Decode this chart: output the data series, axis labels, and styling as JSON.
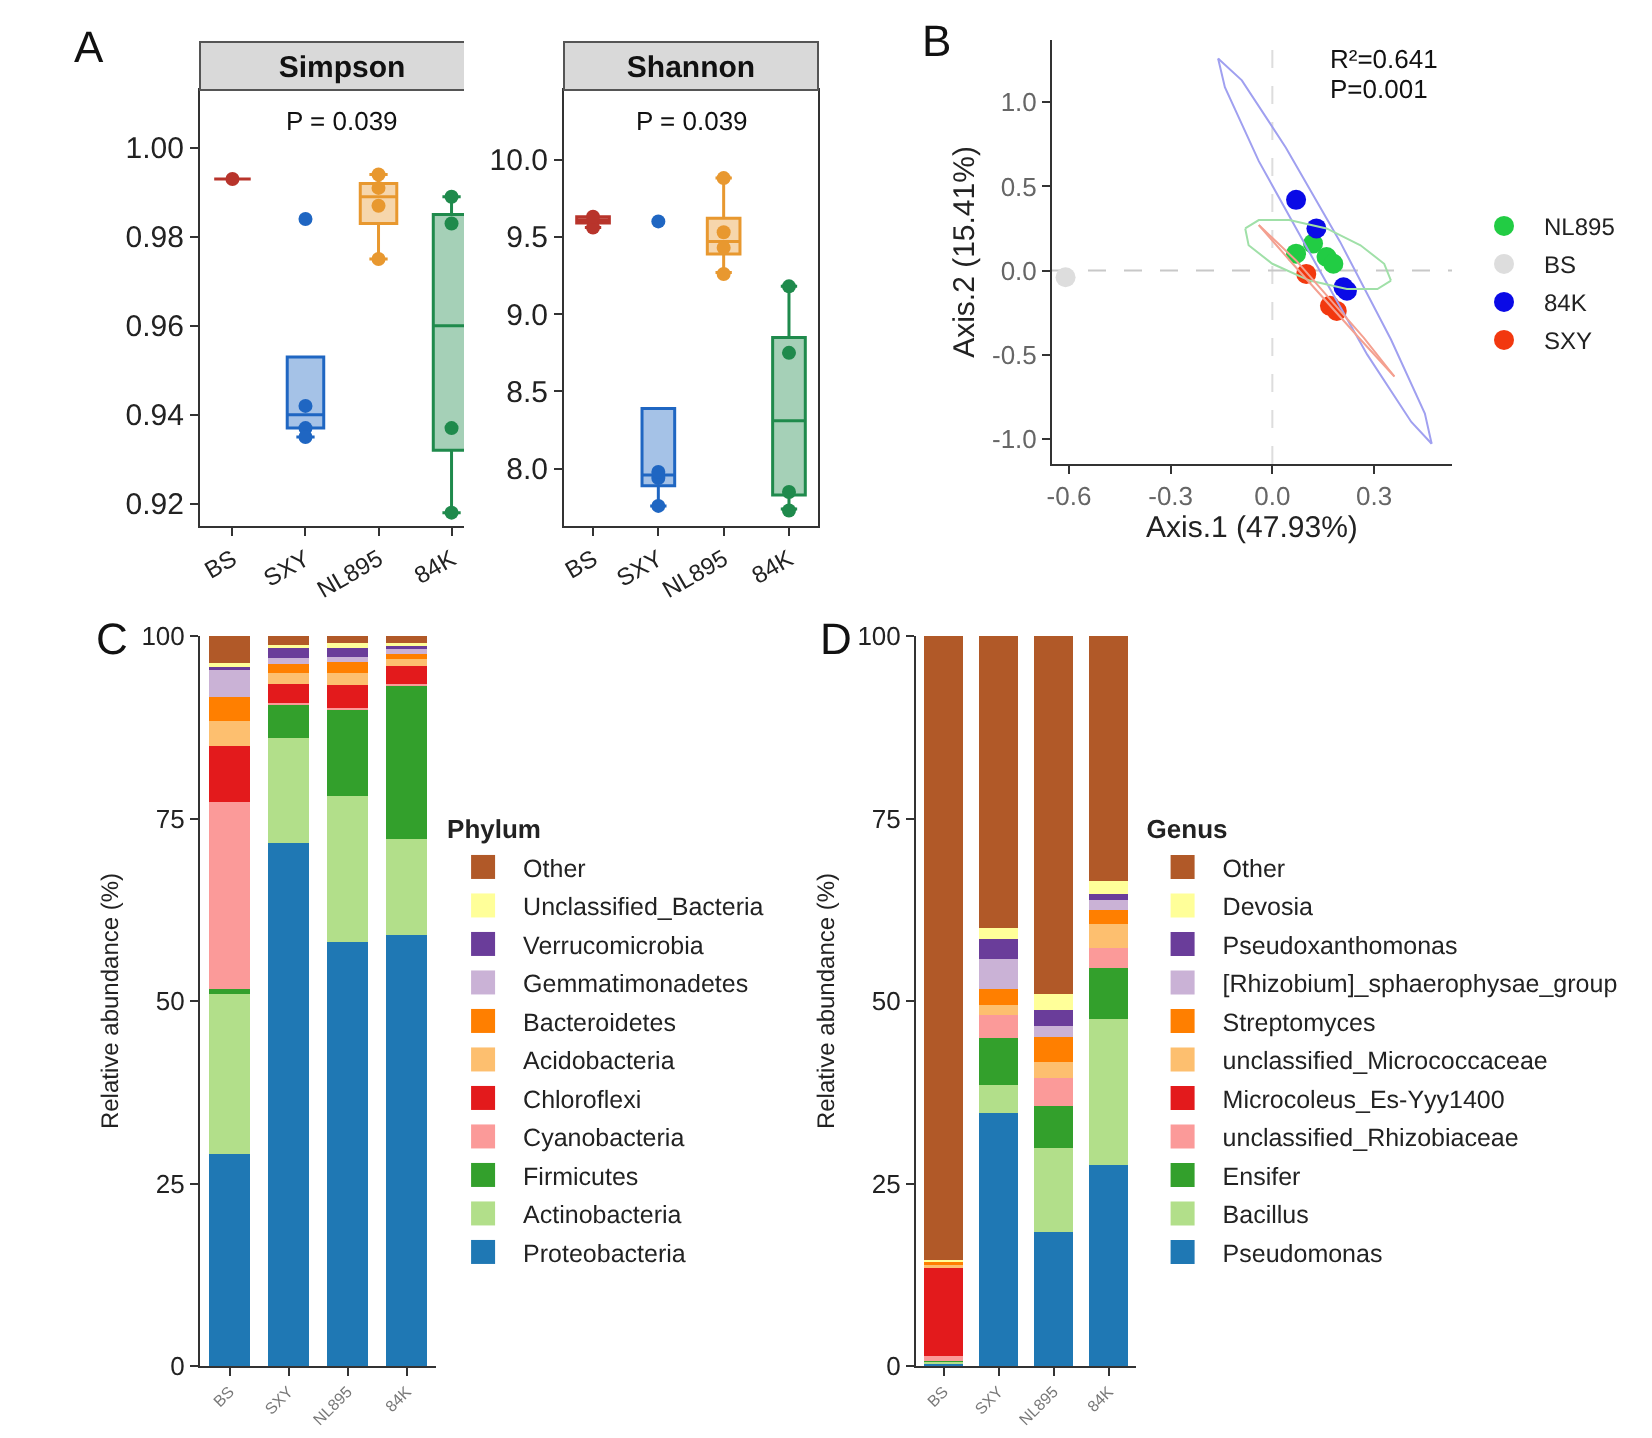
{
  "chart_data": [
    {
      "type": "box",
      "title": "Simpson",
      "categories": [
        "BS",
        "SXY",
        "NL895",
        "84K"
      ],
      "colors": [
        "#b8342b",
        "#1f66c2",
        "#e8982f",
        "#1f8a4c"
      ],
      "boxes": [
        {
          "low": 0.993,
          "q1": 0.993,
          "median": 0.993,
          "q3": 0.993,
          "high": 0.993
        },
        {
          "low": 0.935,
          "q1": 0.937,
          "median": 0.94,
          "q3": 0.953,
          "high": 0.953
        },
        {
          "low": 0.975,
          "q1": 0.983,
          "median": 0.989,
          "q3": 0.992,
          "high": 0.994
        },
        {
          "low": 0.918,
          "q1": 0.932,
          "median": 0.96,
          "q3": 0.985,
          "high": 0.989
        }
      ],
      "series": [
        {
          "type": "scatter",
          "x": [
            "BS",
            "SXY",
            "SXY",
            "SXY",
            "SXY",
            "NL895",
            "NL895",
            "NL895",
            "NL895",
            "84K",
            "84K",
            "84K",
            "84K"
          ],
          "values": [
            0.993,
            0.942,
            0.937,
            0.935,
            0.984,
            0.991,
            0.987,
            0.975,
            0.994,
            0.989,
            0.983,
            0.937,
            0.918
          ],
          "colors": [
            "#b8342b",
            "#1f66c2",
            "#1f66c2",
            "#1f66c2",
            "#1f66c2",
            "#e8982f",
            "#e8982f",
            "#e8982f",
            "#e8982f",
            "#1f8a4c",
            "#1f8a4c",
            "#1f8a4c",
            "#1f8a4c"
          ]
        }
      ],
      "ylim": [
        0.915,
        1.013
      ],
      "yticks": [
        0.92,
        0.94,
        0.96,
        0.98,
        {
          "value": 1,
          "label": "1.00"
        }
      ],
      "annotations": [
        "A",
        "P = 0.039"
      ],
      "legend": false,
      "grid": false
    },
    {
      "type": "box",
      "title": "Shannon",
      "categories": [
        "BS",
        "SXY",
        "NL895",
        "84K"
      ],
      "colors": [
        "#b8342b",
        "#1f66c2",
        "#e8982f",
        "#1f8a4c"
      ],
      "boxes": [
        {
          "low": 9.56,
          "q1": 9.59,
          "median": 9.61,
          "q3": 9.63,
          "high": 9.63
        },
        {
          "low": 7.76,
          "q1": 7.89,
          "median": 7.96,
          "q3": 8.39,
          "high": 8.39
        },
        {
          "low": 9.27,
          "q1": 9.39,
          "median": 9.47,
          "q3": 9.62,
          "high": 9.88
        },
        {
          "low": 7.74,
          "q1": 7.83,
          "median": 8.31,
          "q3": 8.85,
          "high": 9.18
        }
      ],
      "series": [
        {
          "type": "scatter",
          "x": [
            "BS",
            "BS",
            "SXY",
            "SXY",
            "SXY",
            "SXY",
            "NL895",
            "NL895",
            "NL895",
            "NL895",
            "84K",
            "84K",
            "84K",
            "84K"
          ],
          "values": [
            9.56,
            9.63,
            9.6,
            7.94,
            7.76,
            7.98,
            9.88,
            9.53,
            9.43,
            9.26,
            9.18,
            8.75,
            7.85,
            7.73
          ],
          "colors": [
            "#b8342b",
            "#b8342b",
            "#1f66c2",
            "#1f66c2",
            "#1f66c2",
            "#1f66c2",
            "#e8982f",
            "#e8982f",
            "#e8982f",
            "#e8982f",
            "#1f8a4c",
            "#1f8a4c",
            "#1f8a4c",
            "#1f8a4c"
          ]
        }
      ],
      "ylim": [
        7.63,
        10.45
      ],
      "yticks": [
        {
          "value": 8,
          "label": "8.0"
        },
        8.5,
        {
          "value": 9,
          "label": "9.0"
        },
        9.5,
        {
          "value": 10,
          "label": "10.0"
        }
      ],
      "annotations": [
        "P = 0.039"
      ],
      "legend": false,
      "grid": false
    },
    {
      "type": "scatter",
      "xlabel": "Axis.1 (47.93%)",
      "ylabel": "Axis.2 (15.41%)",
      "marker": "circle",
      "series": [
        {
          "name": "NL895",
          "color": "#22cc44",
          "x": [
            0.07,
            0.12,
            0.16,
            0.18
          ],
          "values": [
            0.1,
            0.16,
            0.08,
            0.04
          ]
        },
        {
          "name": "BS",
          "color": "#dddddd",
          "x": [
            -0.61
          ],
          "values": [
            -0.04
          ]
        },
        {
          "name": "84K",
          "color": "#0a0ae6",
          "x": [
            0.07,
            0.13,
            0.21,
            0.22
          ],
          "values": [
            0.42,
            0.25,
            -0.1,
            -0.12
          ]
        },
        {
          "name": "SXY",
          "color": "#f2380f",
          "x": [
            0.1,
            0.17,
            0.19
          ],
          "values": [
            -0.02,
            -0.21,
            -0.24
          ]
        },
        {
          "type": "line",
          "marker": "none",
          "color": "#a0a0f0",
          "x": [
            -0.16,
            -0.09,
            0.04,
            0.2,
            0.35,
            0.45,
            0.47
          ],
          "values": [
            1.26,
            1.13,
            0.73,
            0.17,
            -0.41,
            -0.85,
            -1.03
          ]
        },
        {
          "type": "line",
          "marker": "none",
          "color": "#a0a0f0",
          "x": [
            -0.16,
            -0.14,
            -0.04,
            0.12,
            0.28,
            0.41,
            0.47
          ],
          "values": [
            1.26,
            1.09,
            0.65,
            0.07,
            -0.5,
            -0.9,
            -1.03
          ]
        },
        {
          "type": "line",
          "marker": "none",
          "color": "#a0e0a8",
          "x": [
            -0.08,
            -0.04,
            0.05,
            0.16,
            0.26,
            0.33,
            0.35
          ],
          "values": [
            0.25,
            0.3,
            0.3,
            0.25,
            0.15,
            0.04,
            -0.06
          ]
        },
        {
          "type": "line",
          "marker": "none",
          "color": "#a0e0a8",
          "x": [
            -0.08,
            -0.07,
            0.0,
            0.11,
            0.22,
            0.31,
            0.35
          ],
          "values": [
            0.25,
            0.15,
            0.04,
            -0.06,
            -0.11,
            -0.11,
            -0.06
          ]
        },
        {
          "type": "line",
          "marker": "none",
          "color": "#f4a090",
          "x": [
            -0.04,
            0.07,
            0.27,
            0.36
          ],
          "values": [
            0.27,
            0.06,
            -0.4,
            -0.63
          ]
        },
        {
          "type": "line",
          "marker": "none",
          "color": "#f4a090",
          "x": [
            -0.04,
            0.06,
            0.26,
            0.36
          ],
          "values": [
            0.27,
            0.04,
            -0.41,
            -0.63
          ]
        }
      ],
      "xlim": [
        -0.65,
        0.53
      ],
      "xticks": [
        -0.6,
        -0.3,
        {
          "value": 0,
          "label": "0.0"
        },
        0.3
      ],
      "ylim": [
        -1.15,
        1.37
      ],
      "yticks": [
        {
          "value": -1,
          "label": "-1.0"
        },
        -0.5,
        {
          "value": 0,
          "label": "0.0"
        },
        0.5,
        {
          "value": 1,
          "label": "1.0"
        }
      ],
      "ref_lines": [
        {
          "axis": "x",
          "value": 0,
          "color": "#dddddd",
          "line_style": "dashed"
        },
        {
          "axis": "y",
          "value": 0,
          "color": "#c8c8c8",
          "line_style": "dashed"
        }
      ],
      "annotations": [
        "B",
        "R²=0.641",
        "P=0.001"
      ],
      "legend": "right",
      "grid": false
    },
    {
      "type": "bar",
      "stacked": true,
      "ylabel": "Relative abundance (%)",
      "legend_title": "Phylum",
      "categories": [
        "BS",
        "SXY",
        "NL895",
        "84K"
      ],
      "series": [
        {
          "name": "Proteobacteria",
          "color": "#1f78b4",
          "values": [
            29.1,
            71.7,
            58.1,
            59.0
          ]
        },
        {
          "name": "Actinobacteria",
          "color": "#b2df8a",
          "values": [
            21.8,
            14.3,
            20.0,
            13.2
          ]
        },
        {
          "name": "Firmicutes",
          "color": "#33a02c",
          "values": [
            0.7,
            4.6,
            11.8,
            21.0
          ]
        },
        {
          "name": "Cyanobacteria",
          "color": "#fb9a99",
          "values": [
            25.7,
            0.2,
            0.2,
            0.2
          ]
        },
        {
          "name": "Chloroflexi",
          "color": "#e31a1c",
          "values": [
            7.7,
            2.6,
            3.2,
            2.5
          ]
        },
        {
          "name": "Acidobacteria",
          "color": "#fdbf6f",
          "values": [
            3.3,
            1.5,
            1.6,
            1.0
          ]
        },
        {
          "name": "Bacteroidetes",
          "color": "#ff7f00",
          "values": [
            3.3,
            1.3,
            1.6,
            0.7
          ]
        },
        {
          "name": "Gemmatimonadetes",
          "color": "#cab2d6",
          "values": [
            3.7,
            0.8,
            0.6,
            0.6
          ]
        },
        {
          "name": "Verrucomicrobia",
          "color": "#6a3d9a",
          "values": [
            0.5,
            1.3,
            1.2,
            0.5
          ]
        },
        {
          "name": "Unclassified_Bacteria",
          "color": "#ffff99",
          "values": [
            0.5,
            0.5,
            0.8,
            0.3
          ]
        },
        {
          "name": "Other",
          "color": "#b15928",
          "values": [
            3.7,
            1.2,
            0.9,
            1.0
          ]
        }
      ],
      "ylim": [
        0,
        100
      ],
      "yticks": [
        0,
        25,
        50,
        75,
        100
      ],
      "annotations": [
        "C"
      ],
      "legend": "right",
      "grid": false
    },
    {
      "type": "bar",
      "stacked": true,
      "ylabel": "Relative abundance (%)",
      "legend_title": "Genus",
      "categories": [
        "BS",
        "SXY",
        "NL895",
        "84K"
      ],
      "series": [
        {
          "name": "Pseudomonas",
          "color": "#1f78b4",
          "values": [
            0.3,
            34.6,
            18.4,
            27.6
          ]
        },
        {
          "name": "Bacillus",
          "color": "#b2df8a",
          "values": [
            0.2,
            3.9,
            11.4,
            20.0
          ]
        },
        {
          "name": "Ensifer",
          "color": "#33a02c",
          "values": [
            0.2,
            6.4,
            5.8,
            6.9
          ]
        },
        {
          "name": "unclassified_Rhizobiaceae",
          "color": "#fb9a99",
          "values": [
            0.7,
            3.2,
            3.8,
            2.7
          ]
        },
        {
          "name": "Microcoleus_Es-Yyy1400",
          "color": "#e31a1c",
          "values": [
            12.0,
            0.0,
            0.0,
            0.0
          ]
        },
        {
          "name": "unclassified_Micrococcaceae",
          "color": "#fdbf6f",
          "values": [
            0.4,
            1.3,
            2.3,
            3.3
          ]
        },
        {
          "name": "Streptomyces",
          "color": "#ff7f00",
          "values": [
            0.4,
            2.2,
            3.4,
            2.0
          ]
        },
        {
          "name": "[Rhizobium]_sphaerophysae_group",
          "color": "#cab2d6",
          "values": [
            0.0,
            4.1,
            1.5,
            1.3
          ]
        },
        {
          "name": "Pseudoxanthomonas",
          "color": "#6a3d9a",
          "values": [
            0.0,
            2.8,
            2.2,
            0.9
          ]
        },
        {
          "name": "Devosia",
          "color": "#ffff99",
          "values": [
            0.3,
            1.5,
            2.1,
            1.7
          ]
        },
        {
          "name": "Other",
          "color": "#b15928",
          "values": [
            85.5,
            40.0,
            49.1,
            33.6
          ]
        }
      ],
      "ylim": [
        0,
        100
      ],
      "yticks": [
        0,
        25,
        50,
        75,
        100
      ],
      "annotations": [
        "D"
      ],
      "legend": "right",
      "grid": false
    }
  ]
}
